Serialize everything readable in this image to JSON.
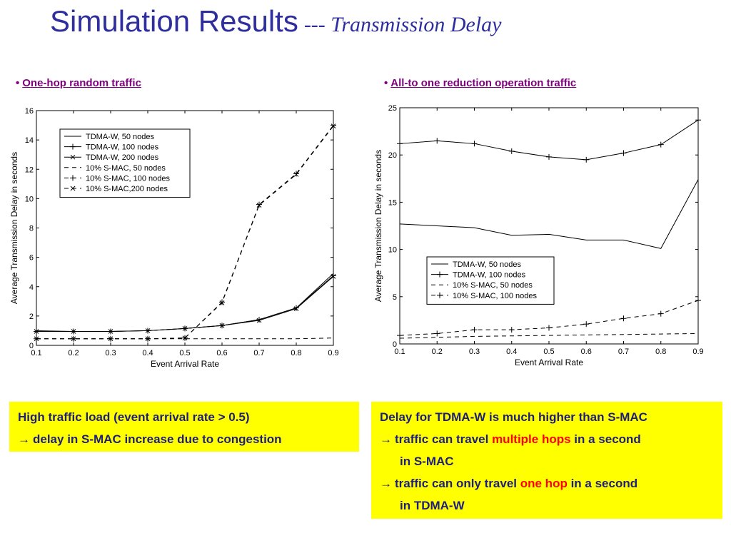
{
  "title": {
    "main": "Simulation Results",
    "sub": "--- Transmission Delay"
  },
  "left": {
    "bullet": "One-hop random traffic",
    "note": {
      "line1": "High traffic load (event arrival rate > 0.5)",
      "arrow": "→",
      "line2": "delay in S-MAC increase due to congestion"
    }
  },
  "right": {
    "bullet": "All-to one reduction operation traffic",
    "note": {
      "line1": "Delay for TDMA-W is much higher than S-MAC",
      "arrow1": "→",
      "line2a": "traffic can travel ",
      "line2b": "multiple hops",
      "line2c": " in a second",
      "line3": "in S-MAC",
      "arrow2": "→",
      "line4a": "traffic can only travel ",
      "line4b": "one hop",
      "line4c": " in a second",
      "line5": "in TDMA-W"
    }
  },
  "colors": {
    "title": "#2e2e9e",
    "bullet": "#800080",
    "note_bg": "#ffff00",
    "note_text": "#1e1e7e",
    "highlight": "#ff0000"
  },
  "chart_data": [
    {
      "type": "line",
      "xlabel": "Event Arrival Rate",
      "ylabel": "Average Transmission Delay in seconds",
      "xlim": [
        0.1,
        0.9
      ],
      "ylim": [
        0,
        16
      ],
      "x": [
        0.1,
        0.2,
        0.3,
        0.4,
        0.5,
        0.6,
        0.7,
        0.8,
        0.9
      ],
      "xticks": [
        "0.1",
        "0.2",
        "0.3",
        "0.4",
        "0.5",
        "0.6",
        "0.7",
        "0.8",
        "0.9"
      ],
      "yticks": [
        "0",
        "2",
        "4",
        "6",
        "8",
        "10",
        "12",
        "14",
        "16"
      ],
      "legend_position": "top-left",
      "grid": false,
      "series": [
        {
          "name": "TDMA-W, 50 nodes",
          "style": "solid",
          "marker": "none",
          "values": [
            1.0,
            0.95,
            0.95,
            1.0,
            1.15,
            1.35,
            1.75,
            2.55,
            4.9
          ]
        },
        {
          "name": "TDMA-W, 100 nodes",
          "style": "solid",
          "marker": "plus",
          "values": [
            0.95,
            0.95,
            0.95,
            1.0,
            1.15,
            1.35,
            1.75,
            2.55,
            4.75
          ]
        },
        {
          "name": "TDMA-W, 200 nodes",
          "style": "solid",
          "marker": "x",
          "values": [
            0.95,
            0.95,
            0.95,
            1.0,
            1.15,
            1.35,
            1.7,
            2.5,
            4.7
          ]
        },
        {
          "name": "10% S-MAC, 50 nodes",
          "style": "dashed",
          "marker": "none",
          "values": [
            0.45,
            0.45,
            0.45,
            0.45,
            0.45,
            0.45,
            0.45,
            0.45,
            0.5
          ]
        },
        {
          "name": "10% S-MAC, 100 nodes",
          "style": "dashed",
          "marker": "plus",
          "values": [
            0.45,
            0.45,
            0.45,
            0.45,
            0.5,
            2.95,
            9.6,
            11.7,
            15.0
          ]
        },
        {
          "name": "10% S-MAC,200 nodes",
          "style": "dashed",
          "marker": "x",
          "values": [
            0.45,
            0.45,
            0.45,
            0.45,
            0.5,
            2.9,
            9.55,
            11.65,
            14.95
          ]
        }
      ]
    },
    {
      "type": "line",
      "xlabel": "Event Arrival Rate",
      "ylabel": "Average Transmission Delay in seconds",
      "xlim": [
        0.1,
        0.9
      ],
      "ylim": [
        0,
        25
      ],
      "x": [
        0.1,
        0.2,
        0.3,
        0.4,
        0.5,
        0.6,
        0.7,
        0.8,
        0.9
      ],
      "xticks": [
        "0.1",
        "0.2",
        "0.3",
        "0.4",
        "0.5",
        "0.6",
        "0.7",
        "0.8",
        "0.9"
      ],
      "yticks": [
        "0",
        "5",
        "10",
        "15",
        "20",
        "25"
      ],
      "legend_position": "bottom-center",
      "grid": false,
      "series": [
        {
          "name": "TDMA-W, 50 nodes",
          "style": "solid",
          "marker": "none",
          "values": [
            12.7,
            12.5,
            12.3,
            11.5,
            11.6,
            11.0,
            11.0,
            10.1,
            17.4
          ]
        },
        {
          "name": "TDMA-W, 100 nodes",
          "style": "solid",
          "marker": "plus",
          "values": [
            21.2,
            21.5,
            21.2,
            20.4,
            19.8,
            19.5,
            20.2,
            21.1,
            23.7
          ]
        },
        {
          "name": "10% S-MAC, 50 nodes",
          "style": "dashed",
          "marker": "none",
          "values": [
            0.6,
            0.7,
            0.8,
            0.85,
            0.9,
            0.95,
            1.0,
            1.05,
            1.1
          ]
        },
        {
          "name": "10% S-MAC, 100 nodes",
          "style": "dashed",
          "marker": "plus",
          "values": [
            0.9,
            1.1,
            1.5,
            1.5,
            1.7,
            2.1,
            2.7,
            3.2,
            4.6
          ]
        }
      ]
    }
  ]
}
